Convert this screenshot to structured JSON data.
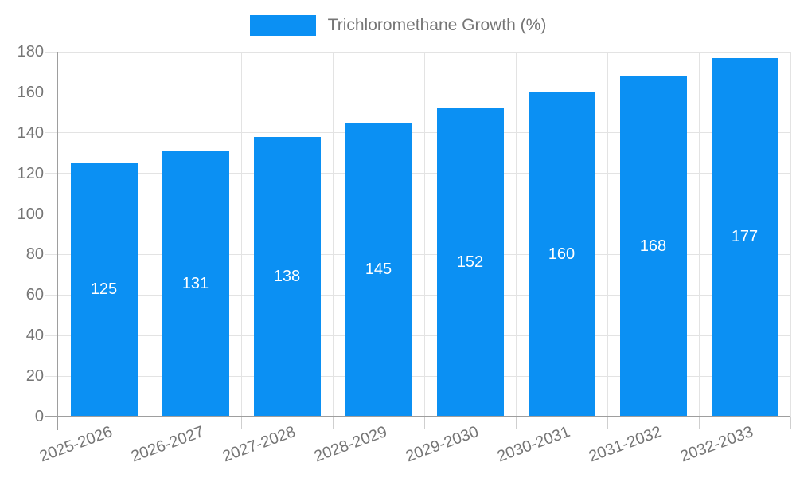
{
  "chart_data": {
    "type": "bar",
    "title": "",
    "legend_label": "Trichloromethane Growth (%)",
    "legend_position": "top-center",
    "categories": [
      "2025-2026",
      "2026-2027",
      "2027-2028",
      "2028-2029",
      "2029-2030",
      "2030-2031",
      "2031-2032",
      "2032-2033"
    ],
    "values": [
      125,
      131,
      138,
      145,
      152,
      160,
      168,
      177
    ],
    "value_labels_shown": true,
    "xlabel": "",
    "ylabel": "",
    "ylim": [
      0,
      180
    ],
    "ytick_step": 20,
    "yticks": [
      0,
      20,
      40,
      60,
      80,
      100,
      120,
      140,
      160,
      180
    ],
    "grid": true,
    "x_label_rotation_deg": -20,
    "colors": {
      "bar": "#0B90F3",
      "value_label": "#FFFFFF",
      "axis_text": "#757575",
      "grid_line": "#E3E3E3",
      "axis_line": "#9E9E9E",
      "tick": "#CFCFCF",
      "background": "#FFFFFF"
    }
  }
}
